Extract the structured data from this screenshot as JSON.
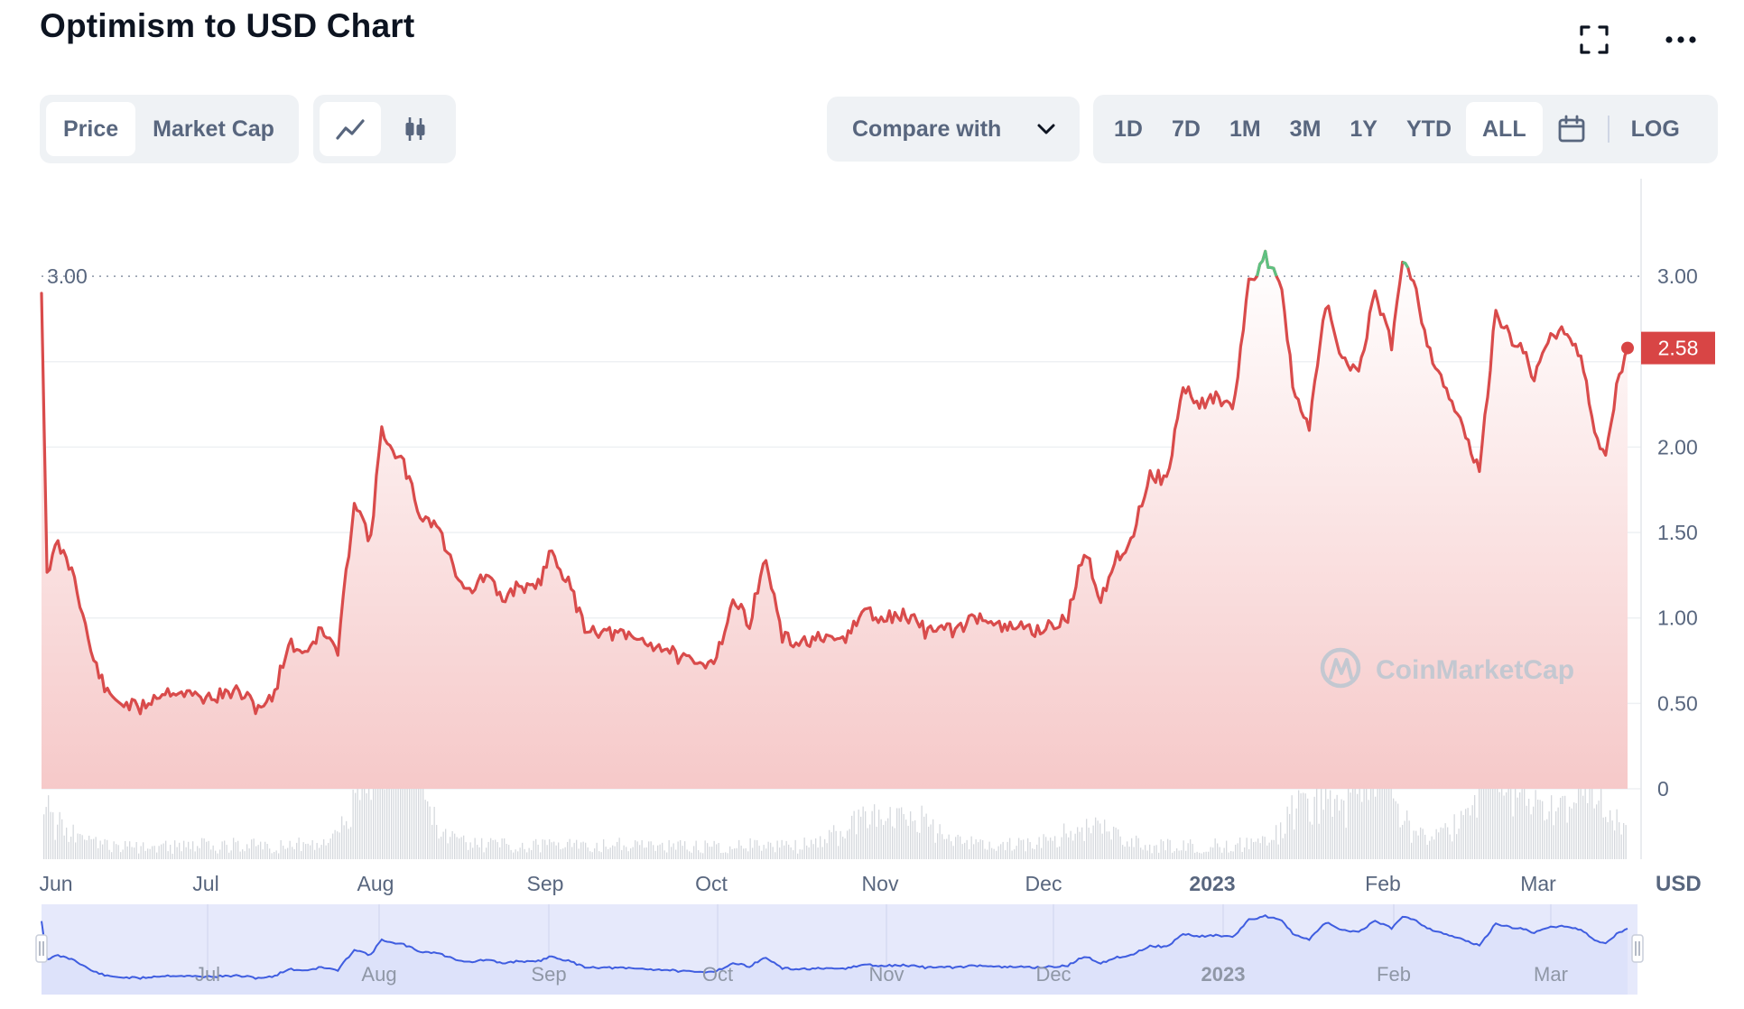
{
  "header": {
    "title": "Optimism to USD Chart"
  },
  "tabs": {
    "price": "Price",
    "market_cap": "Market Cap"
  },
  "compare": {
    "label": "Compare with"
  },
  "ranges": [
    "1D",
    "7D",
    "1M",
    "3M",
    "1Y",
    "YTD",
    "ALL"
  ],
  "selected_range": "ALL",
  "log_label": "LOG",
  "watermark": "CoinMarketCap",
  "colors": {
    "line": "#d94b4b",
    "line_up": "#5fc181",
    "area_top": "#f6c9c9",
    "navigator_fill": "#e6e9fb",
    "navigator_line": "#3f5de0",
    "volume": "#d5d8dd",
    "price_badge": "#d84545"
  },
  "chart_data": {
    "type": "line",
    "title": "Optimism to USD Chart",
    "ylabel": "USD",
    "ylim": [
      0,
      3.4
    ],
    "yticks": [
      "0",
      "0.50",
      "1.00",
      "1.50",
      "2.00",
      "3.00"
    ],
    "y_values": [
      0,
      0.5,
      1.0,
      1.5,
      2.0,
      3.0
    ],
    "reference_line": {
      "value": 3.0,
      "label": "3.00"
    },
    "current_price": {
      "value": 2.58,
      "label": "2.58"
    },
    "x_labels": [
      "Jun",
      "Jul",
      "Aug",
      "Sep",
      "Oct",
      "Nov",
      "Dec",
      "2023",
      "Feb",
      "Mar"
    ],
    "navigator_labels": [
      "Jul",
      "Aug",
      "Sep",
      "Oct",
      "Nov",
      "Dec",
      "2023",
      "Feb",
      "Mar"
    ],
    "series": [
      {
        "x": [
          "2022-05-31",
          "2022-06-01",
          "2022-06-03",
          "2022-06-06",
          "2022-06-09",
          "2022-06-12",
          "2022-06-15",
          "2022-06-18",
          "2022-06-21",
          "2022-06-24",
          "2022-06-27",
          "2022-06-30",
          "2022-07-03",
          "2022-07-06",
          "2022-07-09",
          "2022-07-12",
          "2022-07-15",
          "2022-07-18",
          "2022-07-21",
          "2022-07-24",
          "2022-07-27",
          "2022-07-30",
          "2022-08-01",
          "2022-08-03",
          "2022-08-05",
          "2022-08-08",
          "2022-08-11",
          "2022-08-14",
          "2022-08-17",
          "2022-08-20",
          "2022-08-23",
          "2022-08-26",
          "2022-08-29",
          "2022-09-01",
          "2022-09-04",
          "2022-09-07",
          "2022-09-10",
          "2022-09-13",
          "2022-09-16",
          "2022-09-19",
          "2022-09-22",
          "2022-09-25",
          "2022-09-28",
          "2022-10-01",
          "2022-10-04",
          "2022-10-07",
          "2022-10-10",
          "2022-10-13",
          "2022-10-16",
          "2022-10-19",
          "2022-10-22",
          "2022-10-25",
          "2022-10-28",
          "2022-10-31",
          "2022-11-03",
          "2022-11-06",
          "2022-11-08",
          "2022-11-10",
          "2022-11-13",
          "2022-11-16",
          "2022-11-19",
          "2022-11-22",
          "2022-11-25",
          "2022-11-28",
          "2022-12-01",
          "2022-12-04",
          "2022-12-07",
          "2022-12-10",
          "2022-12-13",
          "2022-12-16",
          "2022-12-19",
          "2022-12-22",
          "2022-12-25",
          "2022-12-28",
          "2022-12-31",
          "2023-01-03",
          "2023-01-06",
          "2023-01-09",
          "2023-01-12",
          "2023-01-14",
          "2023-01-17",
          "2023-01-20",
          "2023-01-23",
          "2023-01-26",
          "2023-01-29",
          "2023-02-01",
          "2023-02-03",
          "2023-02-05",
          "2023-02-08",
          "2023-02-11",
          "2023-02-14",
          "2023-02-17",
          "2023-02-20",
          "2023-02-23",
          "2023-02-25",
          "2023-02-27",
          "2023-03-02",
          "2023-03-05",
          "2023-03-08",
          "2023-03-10",
          "2023-03-12",
          "2023-03-14",
          "2023-03-16"
        ],
        "y": [
          2.9,
          1.28,
          1.43,
          1.25,
          0.8,
          0.55,
          0.5,
          0.47,
          0.55,
          0.58,
          0.55,
          0.53,
          0.55,
          0.57,
          0.48,
          0.52,
          0.85,
          0.8,
          0.93,
          0.8,
          1.7,
          1.45,
          2.13,
          1.95,
          1.9,
          1.6,
          1.55,
          1.3,
          1.15,
          1.25,
          1.1,
          1.2,
          1.15,
          1.4,
          1.2,
          0.95,
          0.92,
          0.9,
          0.88,
          0.85,
          0.82,
          0.75,
          0.72,
          0.78,
          1.1,
          0.98,
          1.35,
          0.88,
          0.85,
          0.88,
          0.85,
          0.9,
          1.05,
          0.98,
          1.02,
          1.0,
          0.92,
          0.95,
          0.92,
          0.98,
          1.02,
          0.93,
          0.95,
          0.93,
          0.95,
          1.0,
          1.4,
          1.12,
          1.35,
          1.5,
          1.85,
          1.8,
          2.35,
          2.25,
          2.3,
          2.2,
          2.95,
          3.12,
          2.95,
          2.35,
          2.1,
          2.85,
          2.5,
          2.45,
          2.9,
          2.6,
          3.12,
          2.98,
          2.55,
          2.35,
          2.1,
          1.85,
          2.8,
          2.62,
          2.58,
          2.4,
          2.65,
          2.7,
          2.48,
          2.05,
          1.95,
          2.35,
          2.58
        ]
      }
    ],
    "volume": "bars under the price line, larger near Aug, Nov, late Jan–Mar"
  }
}
